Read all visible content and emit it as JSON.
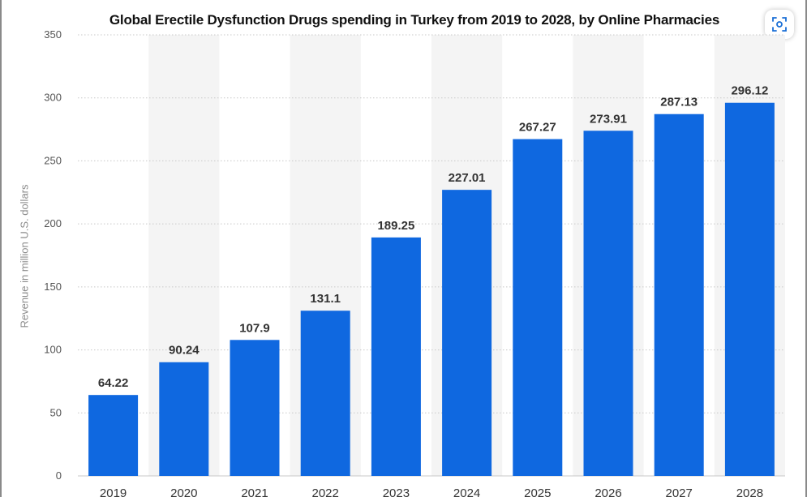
{
  "chart_data": {
    "type": "bar",
    "title": "Global Erectile Dysfunction Drugs spending in Turkey from 2019 to 2028, by Online Pharmacies",
    "xlabel": "",
    "ylabel": "Revenue in million U.S. dollars",
    "categories": [
      "2019",
      "2020",
      "2021",
      "2022",
      "2023",
      "2024",
      "2025",
      "2026",
      "2027",
      "2028"
    ],
    "values": [
      64.22,
      90.24,
      107.9,
      131.1,
      189.25,
      227.01,
      267.27,
      273.91,
      287.13,
      296.12
    ],
    "value_labels": [
      "64.22",
      "90.24",
      "107.9",
      "131.1",
      "189.25",
      "227.01",
      "267.27",
      "273.91",
      "287.13",
      "296.12"
    ],
    "ylim": [
      0,
      350
    ],
    "yticks": [
      "0",
      "50",
      "100",
      "150",
      "200",
      "250",
      "300",
      "350"
    ],
    "grid": true,
    "bar_color": "#0f68e0",
    "band_color": "#f4f4f4",
    "grid_color": "#c8c8c8"
  },
  "toolbar": {
    "zoom_icon": "zoom-icon"
  }
}
